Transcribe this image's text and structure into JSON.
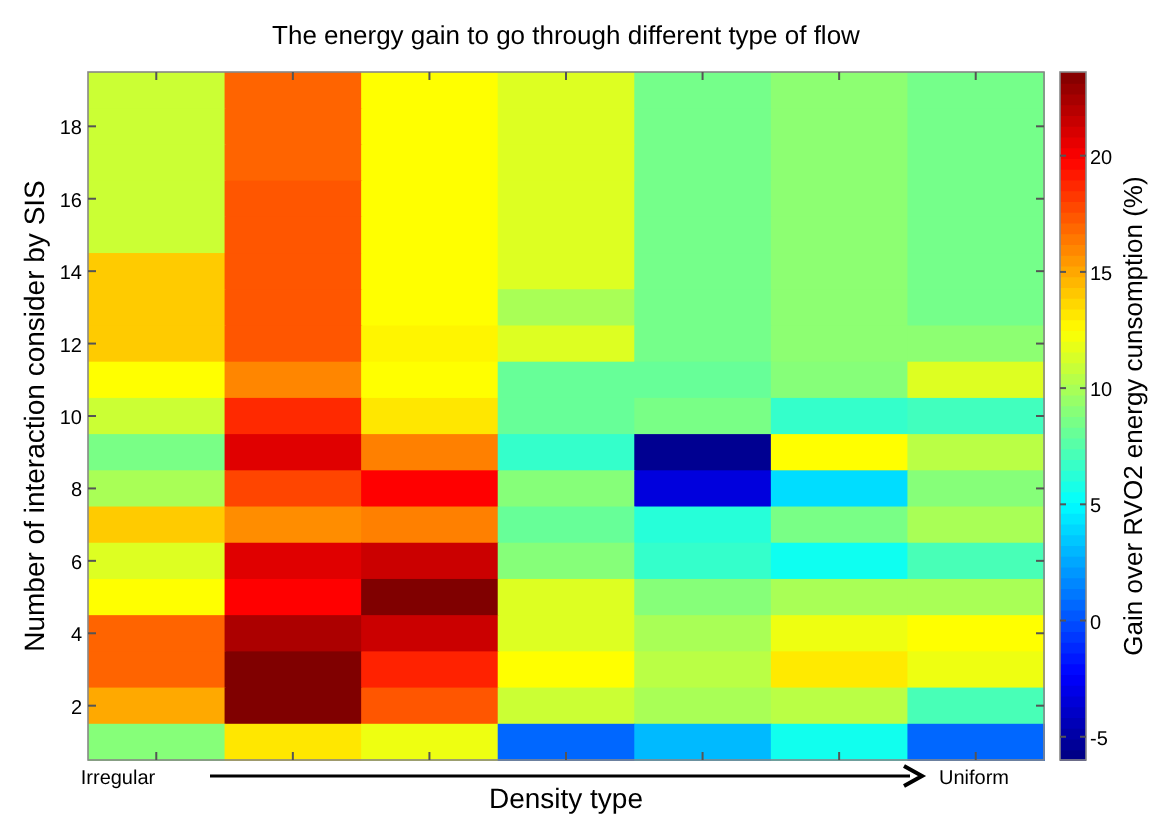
{
  "chart_data": {
    "type": "heatmap",
    "title": "The energy gain to go through different type of flow",
    "xlabel": "Density type",
    "ylabel": "Number of interaction consider by SIS",
    "clabel": "Gain over RVO2 energy cunsomption (%)",
    "annotations": [
      "Irregular",
      "Uniform"
    ],
    "categories": [
      null,
      null,
      null,
      null,
      null,
      null,
      null
    ],
    "y_categories": [
      null,
      "18",
      null,
      "16",
      null,
      "14",
      null,
      "12",
      null,
      "10",
      null,
      "8",
      null,
      "6",
      null,
      "4",
      null,
      "2",
      null
    ],
    "cells": [
      [
        11,
        17,
        12.5,
        11.5,
        8.5,
        9.2,
        8.5
      ],
      [
        11,
        17,
        12.5,
        11.5,
        8.5,
        9.2,
        8.5
      ],
      [
        11,
        17,
        12.5,
        11.5,
        8.5,
        9.2,
        8.5
      ],
      [
        11,
        17.4,
        12.5,
        11.5,
        8.5,
        9.2,
        8.5
      ],
      [
        11,
        17.4,
        12.5,
        11.5,
        8.5,
        9.2,
        8.5
      ],
      [
        14,
        17.4,
        12.5,
        11.5,
        8.5,
        9.2,
        8.5
      ],
      [
        14,
        17.4,
        12.5,
        10,
        8.5,
        9.2,
        8.5
      ],
      [
        14,
        17.4,
        12.8,
        11.5,
        8.5,
        9.2,
        9.2
      ],
      [
        12.5,
        16,
        12.5,
        8.1,
        8.1,
        9,
        11.5
      ],
      [
        11,
        18.7,
        13.2,
        8.1,
        8.6,
        6.6,
        7
      ],
      [
        8.6,
        20.8,
        16.2,
        6.6,
        -5.5,
        12.5,
        10.5
      ],
      [
        10,
        17.9,
        19.9,
        9,
        -3.3,
        4.1,
        9
      ],
      [
        14,
        15.8,
        16.2,
        8.1,
        6.2,
        8.6,
        10
      ],
      [
        11.5,
        20.8,
        21.4,
        9,
        6.6,
        5.5,
        7.2
      ],
      [
        12.5,
        19.9,
        23.6,
        11.5,
        9,
        10,
        10
      ],
      [
        17,
        22.3,
        21.4,
        11.5,
        10,
        12,
        12.5
      ],
      [
        17,
        23.6,
        18.9,
        12.5,
        10.5,
        13.1,
        12
      ],
      [
        15,
        23.6,
        17.4,
        11,
        10,
        10.5,
        7.2
      ],
      [
        9,
        13.2,
        12,
        0.7,
        3.1,
        5.6,
        0.7
      ]
    ],
    "clim": [
      -6,
      23.6
    ],
    "cticks": [
      -5,
      0,
      5,
      10,
      15,
      20
    ]
  }
}
